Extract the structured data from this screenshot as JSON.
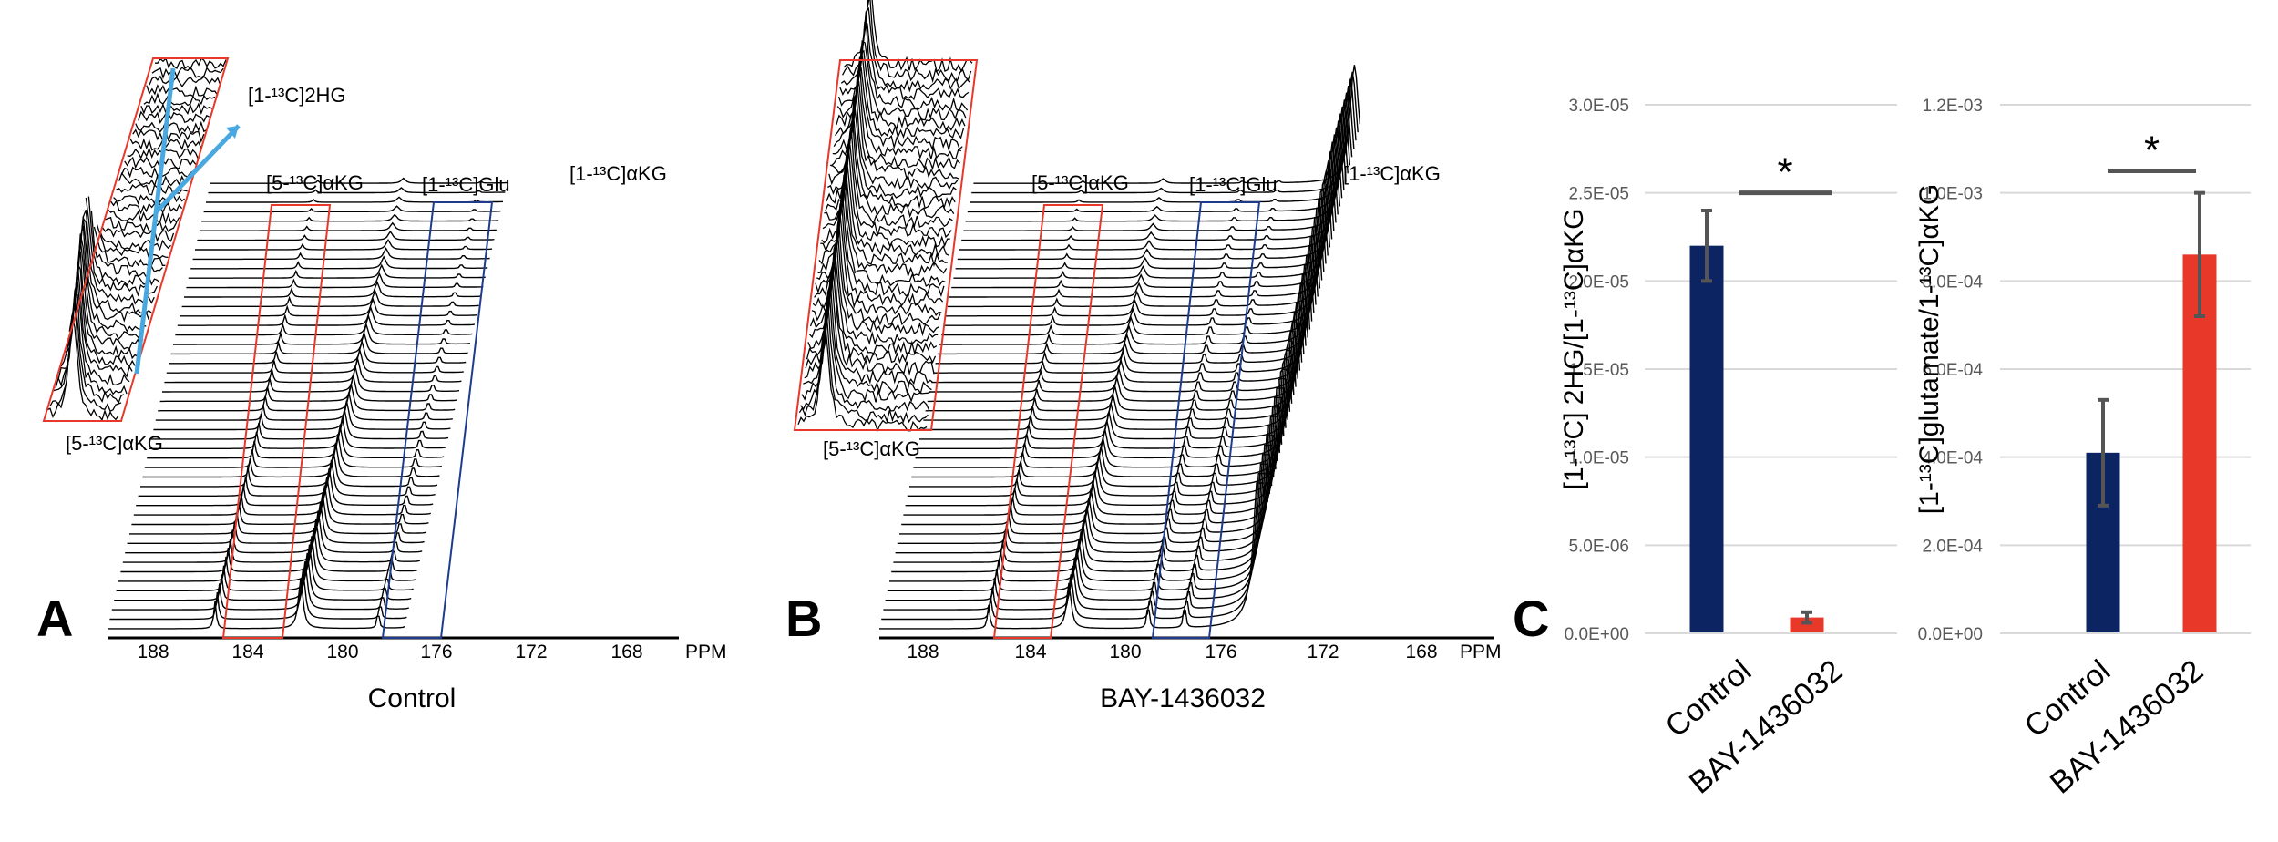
{
  "colors": {
    "control_bar": "#0c2461",
    "treated_bar": "#e8382a",
    "red_box": "#e8382a",
    "blue_box": "#1f3b8f",
    "arrow": "#4aa8e0",
    "errorbar": "#555555"
  },
  "panels": {
    "A": {
      "letter": "A",
      "caption": "Control",
      "ppm_unit": "PPM",
      "ppm_ticks": [
        "188",
        "184",
        "180",
        "176",
        "172",
        "168"
      ],
      "labels": {
        "kg5": "[5-¹³C]αKG",
        "glu": "[1-¹³C]Glu",
        "kg1": "[1-¹³C]αKG",
        "hg2": "[1-¹³C]2HG",
        "inset_kg5": "[5-¹³C]αKG"
      }
    },
    "B": {
      "letter": "B",
      "caption": "BAY-1436032",
      "ppm_unit": "PPM",
      "ppm_ticks": [
        "188",
        "184",
        "180",
        "176",
        "172",
        "168"
      ],
      "labels": {
        "kg5": "[5-¹³C]αKG",
        "glu": "[1-¹³C]Glu",
        "kg1": "[1-¹³C]αKG",
        "inset_kg5": "[5-¹³C]αKG"
      }
    },
    "C": {
      "letter": "C"
    }
  },
  "chart_data": [
    {
      "type": "bar",
      "categories": [
        "Control",
        "BAY-1436032"
      ],
      "values": [
        2.2e-05,
        9e-07
      ],
      "errors": [
        2e-06,
        3e-07
      ],
      "ylabel": "[1-¹³C] 2HG/[1-¹³C]αKG",
      "ylim": [
        0,
        3e-05
      ],
      "yticks": [
        0,
        5e-06,
        1e-05,
        1.5e-05,
        2e-05,
        2.5e-05,
        3e-05
      ],
      "ytick_labels": [
        "0.0E+00",
        "5.0E-06",
        "1.0E-05",
        "1.5E-05",
        "2.0E-05",
        "2.5E-05",
        "3.0E-05"
      ],
      "significance": {
        "label": "*",
        "y": 2.5e-05
      },
      "grid": true
    },
    {
      "type": "bar",
      "categories": [
        "Control",
        "BAY-1436032"
      ],
      "values": [
        0.00041,
        0.00086
      ],
      "errors": [
        0.00012,
        0.00014
      ],
      "ylabel": "[1-¹³C]glutamate/1-¹³C]αKG",
      "ylim": [
        0,
        0.0012
      ],
      "yticks": [
        0,
        0.0002,
        0.0004,
        0.0006,
        0.0008,
        0.001,
        0.0012
      ],
      "ytick_labels": [
        "0.0E+00",
        "2.0E-04",
        "4.0E-04",
        "6.0E-04",
        "8.0E-04",
        "1.0E-03",
        "1.2E-03"
      ],
      "significance": {
        "label": "*",
        "y": 0.00105
      },
      "grid": true
    }
  ]
}
